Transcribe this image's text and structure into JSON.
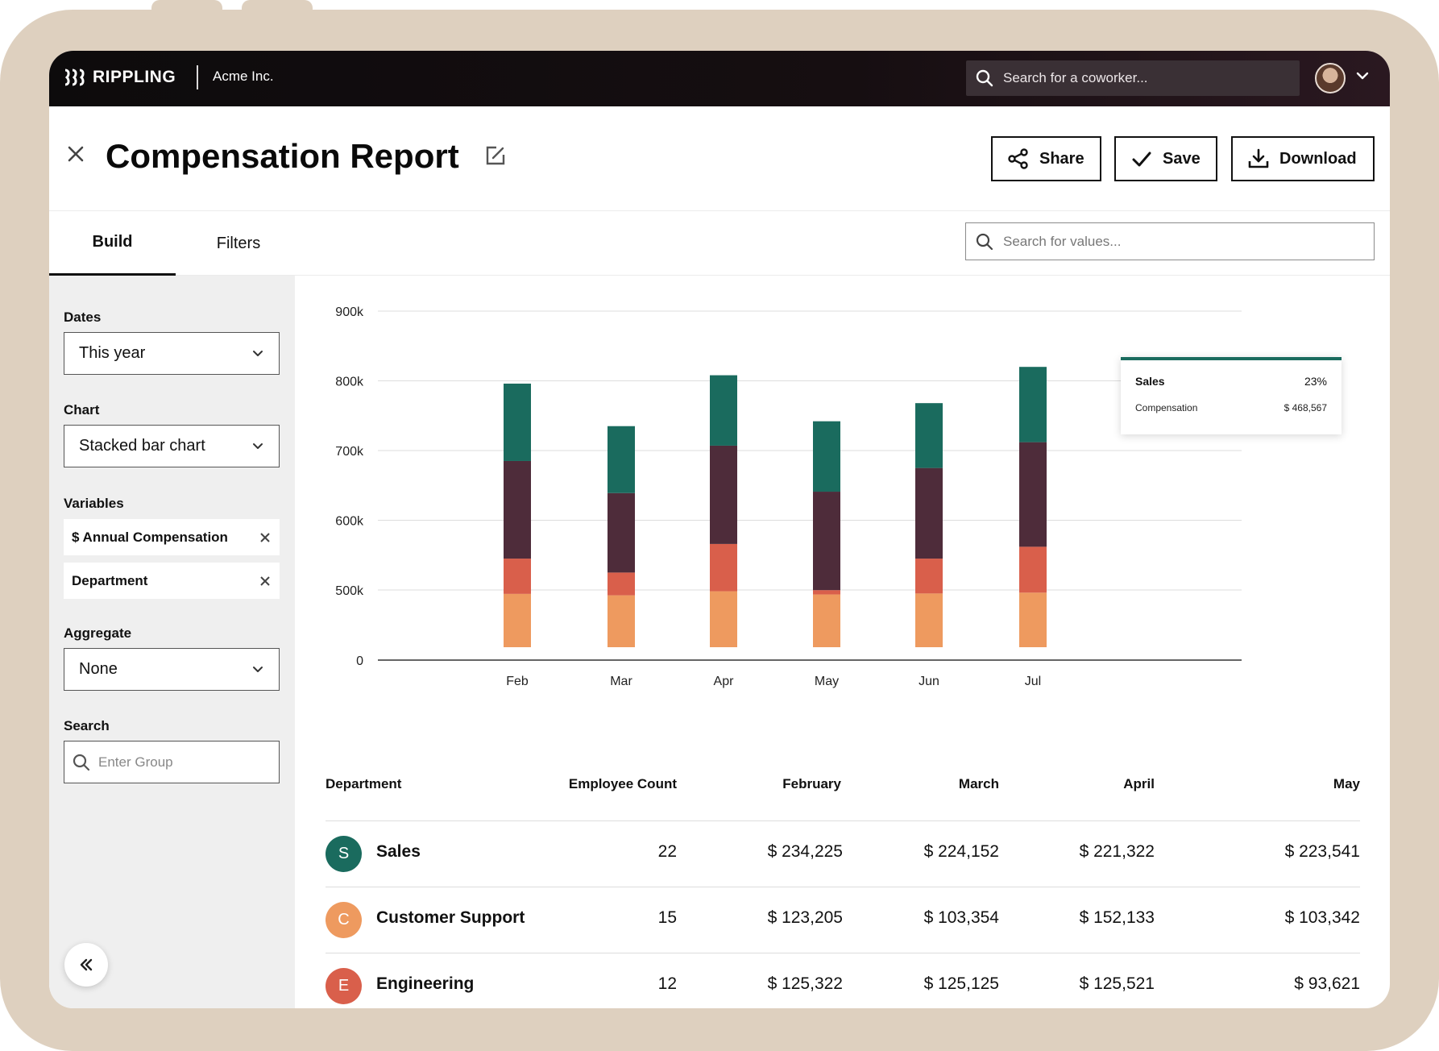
{
  "app": {
    "brand": "RIPPLING",
    "company": "Acme Inc.",
    "search_placeholder": "Search for a coworker..."
  },
  "header": {
    "title": "Compensation Report",
    "share_label": "Share",
    "save_label": "Save",
    "download_label": "Download"
  },
  "tabs": [
    {
      "label": "Build",
      "active": true
    },
    {
      "label": "Filters",
      "active": false
    }
  ],
  "value_search": {
    "placeholder": "Search for values..."
  },
  "sidebar": {
    "dates_label": "Dates",
    "dates_value": "This year",
    "chart_label": "Chart",
    "chart_value": "Stacked bar chart",
    "variables_label": "Variables",
    "variables": [
      "$ Annual Compensation",
      "Department"
    ],
    "aggregate_label": "Aggregate",
    "aggregate_value": "None",
    "search_label": "Search",
    "search_placeholder": "Enter Group"
  },
  "colors": {
    "sales": "#1a6b5e",
    "dark": "#4e2c3a",
    "engineering": "#d95f4b",
    "customer_support": "#ee9a5f"
  },
  "chart_data": {
    "type": "bar",
    "stacked": true,
    "categories": [
      "Feb",
      "Mar",
      "Apr",
      "May",
      "Jun",
      "Jul"
    ],
    "y_ticks": [
      "0",
      "500k",
      "600k",
      "700k",
      "800k",
      "900k"
    ],
    "series": [
      {
        "color": "#ee9a5f",
        "values": [
          472,
          462,
          491,
          468,
          475,
          481
        ]
      },
      {
        "color": "#d95f4b",
        "values": [
          73,
          63,
          75,
          31,
          70,
          81
        ]
      },
      {
        "color": "#4e2c3a",
        "values": [
          140,
          114,
          141,
          142,
          130,
          150
        ]
      },
      {
        "color": "#1a6b5e",
        "values": [
          111,
          96,
          101,
          101,
          93,
          108
        ]
      }
    ],
    "grid": true
  },
  "tooltip": {
    "category": "Sales",
    "percent": "23%",
    "metric": "Compensation",
    "value": "$ 468,567"
  },
  "table": {
    "columns": [
      "Department",
      "Employee Count",
      "February",
      "March",
      "April",
      "May"
    ],
    "rows": [
      {
        "initial": "S",
        "color": "#1a6b5e",
        "name": "Sales",
        "count": "22",
        "feb": "$ 234,225",
        "mar": "$ 224,152",
        "apr": "$ 221,322",
        "may": "$ 223,541"
      },
      {
        "initial": "C",
        "color": "#ee9a5f",
        "name": "Customer Support",
        "count": "15",
        "feb": "$ 123,205",
        "mar": "$ 103,354",
        "apr": "$ 152,133",
        "may": "$ 103,342"
      },
      {
        "initial": "E",
        "color": "#d95f4b",
        "name": "Engineering",
        "count": "12",
        "feb": "$ 125,322",
        "mar": "$ 125,125",
        "apr": "$ 125,521",
        "may": "$ 93,621"
      }
    ]
  }
}
